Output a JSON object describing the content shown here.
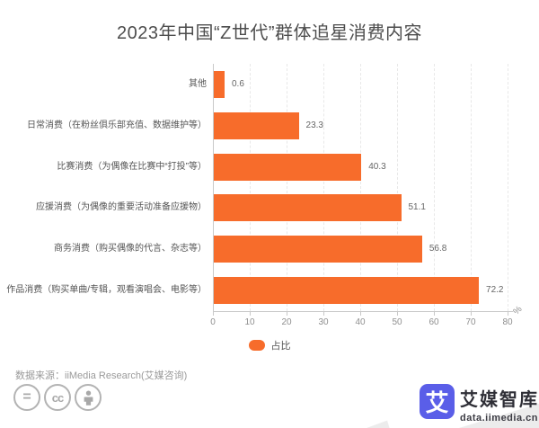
{
  "title": "2023年中国“Z世代”群体追星消费内容",
  "chart_data": {
    "type": "bar",
    "orientation": "horizontal",
    "title": "2023年中国“Z世代”群体追星消费内容",
    "categories_top_to_bottom": [
      "其他",
      "日常消费（在粉丝俱乐部充值、数据维护等）",
      "比赛消费（为偶像在比赛中“打投”等）",
      "应援消费（为偶像的重要活动准备应援物）",
      "商务消费（购买偶像的代言、杂志等）",
      "作品消费（购买单曲/专辑，观看演唱会、电影等）"
    ],
    "values": [
      0.6,
      23.3,
      40.3,
      51.1,
      56.8,
      72.2
    ],
    "series_name": "占比",
    "xlim": [
      0,
      80
    ],
    "x_ticks": [
      0,
      10,
      20,
      30,
      40,
      50,
      60,
      70,
      80
    ],
    "x_unit": "%",
    "bar_color": "#f76c2b",
    "grid": "vertical-dashed",
    "legend_position": "bottom-center"
  },
  "legend": {
    "label": "占比",
    "color": "#f76c2b"
  },
  "footer": {
    "source_text": "数据来源：iiMedia Research(艾媒咨询)",
    "license_icons": [
      "equals-icon",
      "cc-icon",
      "person-icon"
    ]
  },
  "logo": {
    "mark_char": "艾",
    "name": "艾媒智库",
    "domain": "data.iimedia.cn",
    "mark_color": "#5a5ee8",
    "ribbon_color": "#ececec"
  }
}
